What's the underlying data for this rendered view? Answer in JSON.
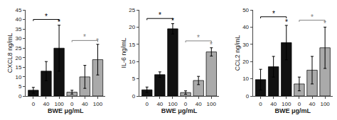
{
  "chart_data": [
    {
      "type": "bar",
      "xlabel": "BWE μg/mL",
      "ylabel": "CXCL8 ng/mL",
      "categories": [
        "0",
        "40",
        "100",
        "0",
        "40",
        "100"
      ],
      "values": [
        3,
        13,
        25,
        2,
        10,
        19
      ],
      "errors": [
        1.5,
        5,
        12,
        1,
        6,
        8
      ],
      "colors": [
        "#111111",
        "#111111",
        "#111111",
        "#aaaaaa",
        "#aaaaaa",
        "#aaaaaa"
      ],
      "ylim": [
        0,
        45
      ],
      "yticks": [
        0,
        5,
        10,
        15,
        20,
        25,
        30,
        35,
        40,
        45
      ],
      "grid": false,
      "annotations": [
        {
          "text": "*",
          "from": 0,
          "to": 2,
          "y": 40,
          "color": "black"
        },
        {
          "text": "*",
          "from": 3,
          "to": 5,
          "y": 29,
          "color": "gray"
        },
        {
          "text": "*",
          "bar": 2,
          "color": "black"
        },
        {
          "text": "*",
          "bar": 5,
          "color": "gray"
        }
      ]
    },
    {
      "type": "bar",
      "xlabel": "BWE μg/mL",
      "ylabel": "IL-6 ng/mL",
      "categories": [
        "0",
        "40",
        "100",
        "0",
        "40",
        "100"
      ],
      "values": [
        1.8,
        6.2,
        19.5,
        1.0,
        4.5,
        12.8
      ],
      "errors": [
        0.8,
        0.8,
        1.5,
        0.5,
        1.2,
        1.2
      ],
      "colors": [
        "#111111",
        "#111111",
        "#111111",
        "#aaaaaa",
        "#aaaaaa",
        "#aaaaaa"
      ],
      "ylim": [
        0,
        25
      ],
      "yticks": [
        0,
        5,
        10,
        15,
        20,
        25
      ],
      "grid": false,
      "annotations": [
        {
          "text": "*",
          "from": 0,
          "to": 2,
          "y": 22.5,
          "color": "black"
        },
        {
          "text": "*",
          "from": 3,
          "to": 5,
          "y": 16,
          "color": "gray"
        },
        {
          "text": "*",
          "bar": 2,
          "color": "black"
        },
        {
          "text": "*",
          "bar": 5,
          "color": "gray"
        }
      ]
    },
    {
      "type": "bar",
      "xlabel": "BWE μg/mL",
      "ylabel": "CCL2 ng/mL",
      "categories": [
        "0",
        "40",
        "100",
        "0",
        "40",
        "100"
      ],
      "values": [
        9.5,
        17,
        31,
        7,
        15,
        28
      ],
      "errors": [
        6,
        6,
        10,
        4,
        8,
        12
      ],
      "colors": [
        "#111111",
        "#111111",
        "#111111",
        "#aaaaaa",
        "#aaaaaa",
        "#aaaaaa"
      ],
      "ylim": [
        0,
        50
      ],
      "yticks": [
        0,
        10,
        20,
        30,
        40,
        50
      ],
      "grid": false,
      "annotations": [
        {
          "text": "*",
          "from": 0,
          "to": 2,
          "y": 46,
          "color": "black"
        },
        {
          "text": "*",
          "from": 3,
          "to": 5,
          "y": 44,
          "color": "gray"
        },
        {
          "text": "*",
          "bar": 2,
          "color": "black"
        },
        {
          "text": "*",
          "bar": 5,
          "color": "gray"
        }
      ]
    }
  ]
}
